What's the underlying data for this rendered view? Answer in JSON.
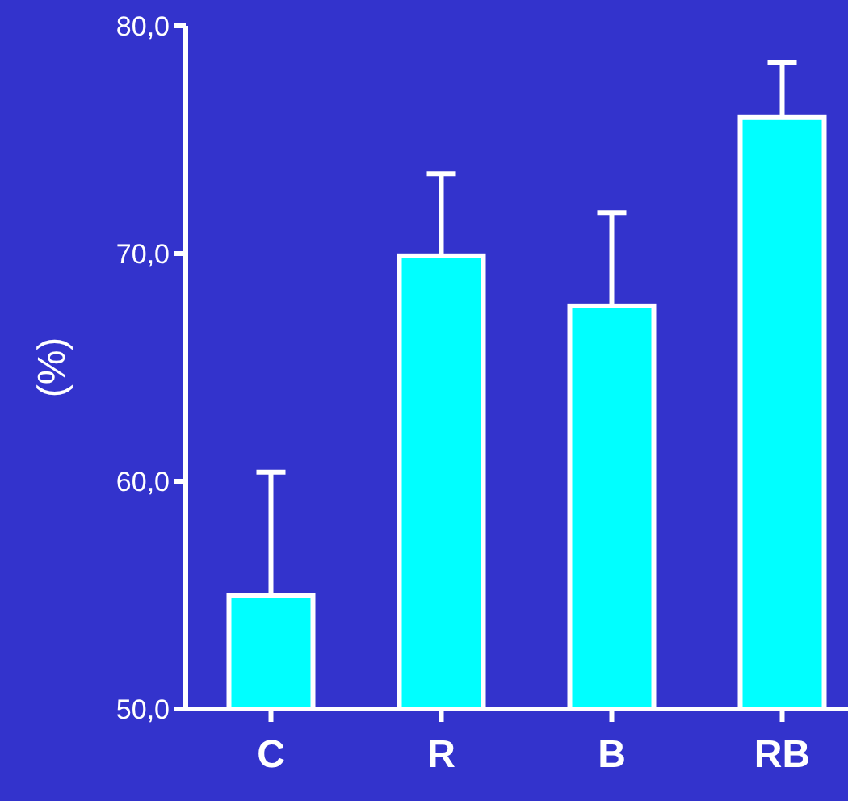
{
  "chart_data": {
    "type": "bar",
    "ylabel": "(%)",
    "categories": [
      "C",
      "R",
      "B",
      "RB"
    ],
    "values": [
      55.0,
      69.9,
      67.7,
      76.0
    ],
    "errors": [
      [
        55.0,
        60.4
      ],
      [
        69.9,
        73.5
      ],
      [
        67.7,
        71.8
      ],
      [
        76.0,
        78.4
      ]
    ],
    "color": "#00ffff",
    "ylim": [
      50,
      80
    ],
    "yticks": [
      {
        "value": 50,
        "label": "50,0"
      },
      {
        "value": 60,
        "label": "60,0"
      },
      {
        "value": 70,
        "label": "70,0"
      },
      {
        "value": 80,
        "label": "80,0"
      }
    ],
    "grid": false
  }
}
